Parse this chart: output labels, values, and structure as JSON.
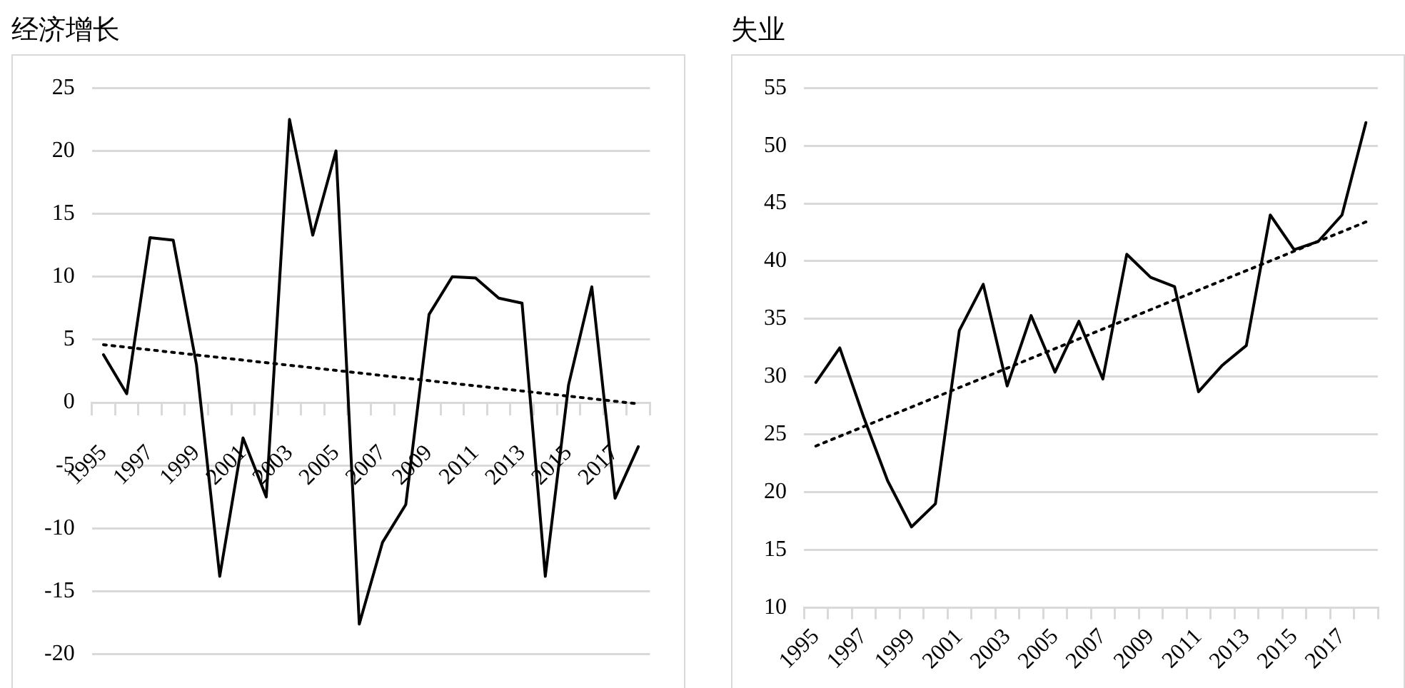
{
  "chart_data": [
    {
      "type": "line",
      "title": "经济增长",
      "categories": [
        "1995",
        null,
        "1997",
        null,
        "1999",
        null,
        "2001",
        null,
        "2003",
        null,
        "2005",
        null,
        "2007",
        null,
        "2009",
        null,
        "2011",
        null,
        "2013",
        null,
        "2015",
        null,
        "2017",
        null
      ],
      "ylim": [
        -20,
        25
      ],
      "yticks": [
        -20,
        -15,
        -10,
        -5,
        0,
        5,
        10,
        15,
        20,
        25
      ],
      "grid": "y",
      "legend": false,
      "marker": "none",
      "series": [
        {
          "color": "#000000",
          "line_style": "solid",
          "values": [
            3.8,
            0.7,
            13.1,
            12.9,
            3,
            -13.8,
            -2.8,
            -7.5,
            22.5,
            13.3,
            20,
            -17.6,
            -11.1,
            -8.1,
            7,
            10,
            9.9,
            8.3,
            7.9,
            -13.8,
            1.4,
            9.2,
            -7.6,
            -3.5
          ]
        },
        {
          "color": "#000000",
          "line_style": "dotted",
          "values": [
            4.6,
            null,
            null,
            null,
            null,
            null,
            null,
            null,
            null,
            null,
            null,
            null,
            null,
            null,
            null,
            null,
            null,
            null,
            null,
            null,
            null,
            null,
            null,
            -0.1
          ]
        }
      ]
    },
    {
      "type": "line",
      "title": "失业",
      "categories": [
        "1995",
        null,
        "1997",
        null,
        "1999",
        null,
        "2001",
        null,
        "2003",
        null,
        "2005",
        null,
        "2007",
        null,
        "2009",
        null,
        "2011",
        null,
        "2013",
        null,
        "2015",
        null,
        "2017",
        null
      ],
      "ylim": [
        10,
        55
      ],
      "yticks": [
        10,
        15,
        20,
        25,
        30,
        35,
        40,
        45,
        50,
        55
      ],
      "grid": "y",
      "legend": false,
      "marker": "none",
      "series": [
        {
          "color": "#000000",
          "line_style": "solid",
          "values": [
            29.5,
            32.5,
            26.5,
            21,
            17,
            19,
            34,
            38,
            29.2,
            35.3,
            30.4,
            34.8,
            29.8,
            40.6,
            38.6,
            37.8,
            28.7,
            31,
            32.7,
            44,
            41,
            41.7,
            44,
            52
          ]
        },
        {
          "color": "#000000",
          "line_style": "dotted",
          "values": [
            24,
            null,
            null,
            null,
            null,
            null,
            null,
            null,
            null,
            null,
            null,
            null,
            null,
            null,
            null,
            null,
            null,
            null,
            null,
            null,
            null,
            null,
            null,
            43.4
          ]
        }
      ]
    }
  ]
}
